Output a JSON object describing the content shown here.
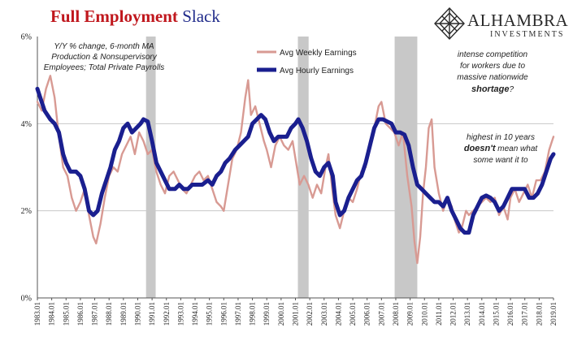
{
  "header": {
    "title_part1": "Full Employment",
    "title_part2": "Slack"
  },
  "logo": {
    "name": "ALHAMBRA",
    "sub": "INVESTMENTS"
  },
  "colors": {
    "weekly": "#d89a93",
    "hourly": "#1a1f8f",
    "recession": "#c8c8c8",
    "grid": "#c8c8c8",
    "title_red": "#c0171d",
    "title_blue": "#1f2a8a"
  },
  "chart_data": {
    "type": "line",
    "subtitle_lines": [
      "Y/Y % change, 6-month MA",
      "Production & Nonsupervisory",
      "Employees; Total Private Payrolls"
    ],
    "annotations": {
      "a1": [
        "intense competition",
        "for workers due to",
        "massive nationwide"
      ],
      "a1_bold": "shortage",
      "a1_tail": "?",
      "a2_line1": "highest in 10 years",
      "a2_bold": "doesn't",
      "a2_rest": " mean what",
      "a2_line3": "some want it to"
    },
    "legend_position": "top-center",
    "ylim": [
      0,
      6
    ],
    "yticks": [
      "0%",
      "2%",
      "4%",
      "6%"
    ],
    "grid": true,
    "xlim": [
      1983.0,
      2019.0
    ],
    "xtick_labels": [
      "1983.01",
      "1984.01",
      "1985.01",
      "1986.01",
      "1987.01",
      "1988.01",
      "1989.01",
      "1990.01",
      "1991.01",
      "1992.01",
      "1993.01",
      "1994.01",
      "1995.01",
      "1996.01",
      "1997.01",
      "1998.01",
      "1999.01",
      "2000.01",
      "2001.01",
      "2002.01",
      "2003.01",
      "2004.01",
      "2005.01",
      "2006.01",
      "2007.01",
      "2008.01",
      "2009.01",
      "2010.01",
      "2011.01",
      "2012.01",
      "2013.01",
      "2014.01",
      "2015.01",
      "2016.01",
      "2017.01",
      "2018.01",
      "2019.01"
    ],
    "recessions": [
      [
        1990.58,
        1991.25
      ],
      [
        2001.17,
        2001.92
      ],
      [
        2007.92,
        2009.5
      ]
    ],
    "series": [
      {
        "name": "Avg Weekly Earnings",
        "points": [
          [
            1983.0,
            4.5
          ],
          [
            1983.3,
            4.3
          ],
          [
            1983.6,
            4.8
          ],
          [
            1983.9,
            5.1
          ],
          [
            1984.2,
            4.6
          ],
          [
            1984.5,
            3.7
          ],
          [
            1984.8,
            3.0
          ],
          [
            1985.1,
            2.8
          ],
          [
            1985.4,
            2.3
          ],
          [
            1985.7,
            2.0
          ],
          [
            1986.0,
            2.2
          ],
          [
            1986.3,
            2.5
          ],
          [
            1986.6,
            1.9
          ],
          [
            1986.9,
            1.4
          ],
          [
            1987.1,
            1.25
          ],
          [
            1987.4,
            1.7
          ],
          [
            1987.7,
            2.3
          ],
          [
            1988.0,
            2.8
          ],
          [
            1988.3,
            3.0
          ],
          [
            1988.6,
            2.9
          ],
          [
            1988.9,
            3.3
          ],
          [
            1989.2,
            3.5
          ],
          [
            1989.5,
            3.7
          ],
          [
            1989.8,
            3.3
          ],
          [
            1990.1,
            3.8
          ],
          [
            1990.4,
            3.6
          ],
          [
            1990.7,
            3.3
          ],
          [
            1991.0,
            3.4
          ],
          [
            1991.3,
            2.9
          ],
          [
            1991.6,
            2.6
          ],
          [
            1991.9,
            2.4
          ],
          [
            1992.2,
            2.8
          ],
          [
            1992.5,
            2.9
          ],
          [
            1992.8,
            2.7
          ],
          [
            1993.1,
            2.5
          ],
          [
            1993.4,
            2.4
          ],
          [
            1993.7,
            2.6
          ],
          [
            1994.0,
            2.8
          ],
          [
            1994.3,
            2.9
          ],
          [
            1994.6,
            2.7
          ],
          [
            1994.9,
            2.8
          ],
          [
            1995.2,
            2.5
          ],
          [
            1995.5,
            2.2
          ],
          [
            1995.8,
            2.1
          ],
          [
            1996.0,
            2.0
          ],
          [
            1996.3,
            2.6
          ],
          [
            1996.6,
            3.2
          ],
          [
            1996.9,
            3.4
          ],
          [
            1997.2,
            3.8
          ],
          [
            1997.5,
            4.6
          ],
          [
            1997.7,
            5.0
          ],
          [
            1997.9,
            4.2
          ],
          [
            1998.2,
            4.4
          ],
          [
            1998.5,
            4.0
          ],
          [
            1998.8,
            3.6
          ],
          [
            1999.0,
            3.4
          ],
          [
            1999.3,
            3.0
          ],
          [
            1999.6,
            3.5
          ],
          [
            1999.9,
            3.7
          ],
          [
            2000.2,
            3.5
          ],
          [
            2000.5,
            3.4
          ],
          [
            2000.8,
            3.6
          ],
          [
            2001.0,
            3.2
          ],
          [
            2001.3,
            2.6
          ],
          [
            2001.6,
            2.8
          ],
          [
            2001.9,
            2.6
          ],
          [
            2002.2,
            2.3
          ],
          [
            2002.5,
            2.6
          ],
          [
            2002.8,
            2.4
          ],
          [
            2003.1,
            3.0
          ],
          [
            2003.3,
            3.3
          ],
          [
            2003.6,
            2.4
          ],
          [
            2003.8,
            1.9
          ],
          [
            2004.1,
            1.6
          ],
          [
            2004.4,
            2.0
          ],
          [
            2004.7,
            2.3
          ],
          [
            2005.0,
            2.2
          ],
          [
            2005.3,
            2.5
          ],
          [
            2005.6,
            2.9
          ],
          [
            2005.9,
            3.0
          ],
          [
            2006.2,
            3.6
          ],
          [
            2006.5,
            3.9
          ],
          [
            2006.8,
            4.4
          ],
          [
            2007.0,
            4.5
          ],
          [
            2007.3,
            4.0
          ],
          [
            2007.6,
            3.9
          ],
          [
            2007.9,
            3.8
          ],
          [
            2008.2,
            3.5
          ],
          [
            2008.5,
            3.8
          ],
          [
            2008.8,
            2.8
          ],
          [
            2009.1,
            2.1
          ],
          [
            2009.3,
            1.3
          ],
          [
            2009.5,
            0.8
          ],
          [
            2009.7,
            1.4
          ],
          [
            2009.9,
            2.4
          ],
          [
            2010.1,
            3.0
          ],
          [
            2010.3,
            3.9
          ],
          [
            2010.5,
            4.1
          ],
          [
            2010.7,
            3.0
          ],
          [
            2011.0,
            2.4
          ],
          [
            2011.3,
            2.0
          ],
          [
            2011.6,
            2.3
          ],
          [
            2011.9,
            2.1
          ],
          [
            2012.1,
            1.8
          ],
          [
            2012.4,
            1.5
          ],
          [
            2012.6,
            1.6
          ],
          [
            2012.9,
            2.0
          ],
          [
            2013.1,
            1.9
          ],
          [
            2013.4,
            2.0
          ],
          [
            2013.7,
            2.1
          ],
          [
            2014.0,
            2.2
          ],
          [
            2014.3,
            2.3
          ],
          [
            2014.6,
            2.2
          ],
          [
            2014.9,
            2.3
          ],
          [
            2015.2,
            1.9
          ],
          [
            2015.5,
            2.1
          ],
          [
            2015.8,
            1.8
          ],
          [
            2016.0,
            2.3
          ],
          [
            2016.3,
            2.5
          ],
          [
            2016.6,
            2.2
          ],
          [
            2016.9,
            2.4
          ],
          [
            2017.2,
            2.6
          ],
          [
            2017.5,
            2.3
          ],
          [
            2017.8,
            2.7
          ],
          [
            2018.1,
            2.7
          ],
          [
            2018.4,
            2.9
          ],
          [
            2018.7,
            3.4
          ],
          [
            2018.9,
            3.6
          ],
          [
            2019.0,
            3.7
          ]
        ]
      },
      {
        "name": "Avg Hourly Earnings",
        "points": [
          [
            1983.0,
            4.8
          ],
          [
            1983.2,
            4.6
          ],
          [
            1983.5,
            4.3
          ],
          [
            1983.9,
            4.1
          ],
          [
            1984.2,
            4.0
          ],
          [
            1984.5,
            3.8
          ],
          [
            1984.8,
            3.3
          ],
          [
            1985.0,
            3.1
          ],
          [
            1985.3,
            2.9
          ],
          [
            1985.7,
            2.9
          ],
          [
            1986.0,
            2.8
          ],
          [
            1986.3,
            2.5
          ],
          [
            1986.6,
            2.0
          ],
          [
            1986.9,
            1.9
          ],
          [
            1987.2,
            2.0
          ],
          [
            1987.5,
            2.4
          ],
          [
            1987.8,
            2.7
          ],
          [
            1988.1,
            3.0
          ],
          [
            1988.4,
            3.4
          ],
          [
            1988.7,
            3.6
          ],
          [
            1989.0,
            3.9
          ],
          [
            1989.3,
            4.0
          ],
          [
            1989.6,
            3.8
          ],
          [
            1989.9,
            3.9
          ],
          [
            1990.2,
            4.0
          ],
          [
            1990.4,
            4.1
          ],
          [
            1990.7,
            4.05
          ],
          [
            1991.0,
            3.6
          ],
          [
            1991.3,
            3.1
          ],
          [
            1991.6,
            2.9
          ],
          [
            1991.9,
            2.7
          ],
          [
            1992.2,
            2.5
          ],
          [
            1992.6,
            2.5
          ],
          [
            1992.9,
            2.6
          ],
          [
            1993.2,
            2.5
          ],
          [
            1993.5,
            2.5
          ],
          [
            1993.8,
            2.6
          ],
          [
            1994.1,
            2.6
          ],
          [
            1994.5,
            2.6
          ],
          [
            1994.9,
            2.7
          ],
          [
            1995.2,
            2.6
          ],
          [
            1995.5,
            2.8
          ],
          [
            1995.8,
            2.9
          ],
          [
            1996.1,
            3.1
          ],
          [
            1996.4,
            3.2
          ],
          [
            1996.8,
            3.4
          ],
          [
            1997.1,
            3.5
          ],
          [
            1997.4,
            3.6
          ],
          [
            1997.7,
            3.7
          ],
          [
            1998.0,
            4.0
          ],
          [
            1998.3,
            4.1
          ],
          [
            1998.6,
            4.2
          ],
          [
            1998.9,
            4.1
          ],
          [
            1999.2,
            3.8
          ],
          [
            1999.5,
            3.6
          ],
          [
            1999.8,
            3.7
          ],
          [
            2000.1,
            3.7
          ],
          [
            2000.4,
            3.7
          ],
          [
            2000.7,
            3.9
          ],
          [
            2001.0,
            4.0
          ],
          [
            2001.2,
            4.1
          ],
          [
            2001.5,
            3.9
          ],
          [
            2001.8,
            3.6
          ],
          [
            2002.1,
            3.2
          ],
          [
            2002.4,
            2.9
          ],
          [
            2002.7,
            2.8
          ],
          [
            2003.0,
            3.0
          ],
          [
            2003.3,
            3.1
          ],
          [
            2003.6,
            2.8
          ],
          [
            2003.8,
            2.2
          ],
          [
            2004.1,
            1.9
          ],
          [
            2004.4,
            2.0
          ],
          [
            2004.7,
            2.3
          ],
          [
            2005.0,
            2.5
          ],
          [
            2005.3,
            2.7
          ],
          [
            2005.6,
            2.8
          ],
          [
            2005.9,
            3.1
          ],
          [
            2006.2,
            3.5
          ],
          [
            2006.5,
            3.9
          ],
          [
            2006.8,
            4.1
          ],
          [
            2007.1,
            4.1
          ],
          [
            2007.4,
            4.05
          ],
          [
            2007.7,
            4.0
          ],
          [
            2008.0,
            3.8
          ],
          [
            2008.3,
            3.8
          ],
          [
            2008.6,
            3.75
          ],
          [
            2008.9,
            3.5
          ],
          [
            2009.2,
            3.0
          ],
          [
            2009.5,
            2.6
          ],
          [
            2009.8,
            2.5
          ],
          [
            2010.1,
            2.4
          ],
          [
            2010.4,
            2.3
          ],
          [
            2010.7,
            2.2
          ],
          [
            2011.0,
            2.2
          ],
          [
            2011.3,
            2.1
          ],
          [
            2011.6,
            2.3
          ],
          [
            2011.9,
            2.0
          ],
          [
            2012.2,
            1.8
          ],
          [
            2012.5,
            1.6
          ],
          [
            2012.8,
            1.5
          ],
          [
            2013.1,
            1.5
          ],
          [
            2013.4,
            1.9
          ],
          [
            2013.7,
            2.1
          ],
          [
            2014.0,
            2.3
          ],
          [
            2014.3,
            2.35
          ],
          [
            2014.6,
            2.3
          ],
          [
            2014.9,
            2.2
          ],
          [
            2015.2,
            2.0
          ],
          [
            2015.5,
            2.1
          ],
          [
            2015.8,
            2.3
          ],
          [
            2016.1,
            2.5
          ],
          [
            2016.4,
            2.5
          ],
          [
            2016.7,
            2.5
          ],
          [
            2017.0,
            2.5
          ],
          [
            2017.3,
            2.3
          ],
          [
            2017.6,
            2.3
          ],
          [
            2017.9,
            2.4
          ],
          [
            2018.2,
            2.6
          ],
          [
            2018.5,
            2.9
          ],
          [
            2018.8,
            3.2
          ],
          [
            2019.0,
            3.3
          ]
        ]
      }
    ]
  }
}
